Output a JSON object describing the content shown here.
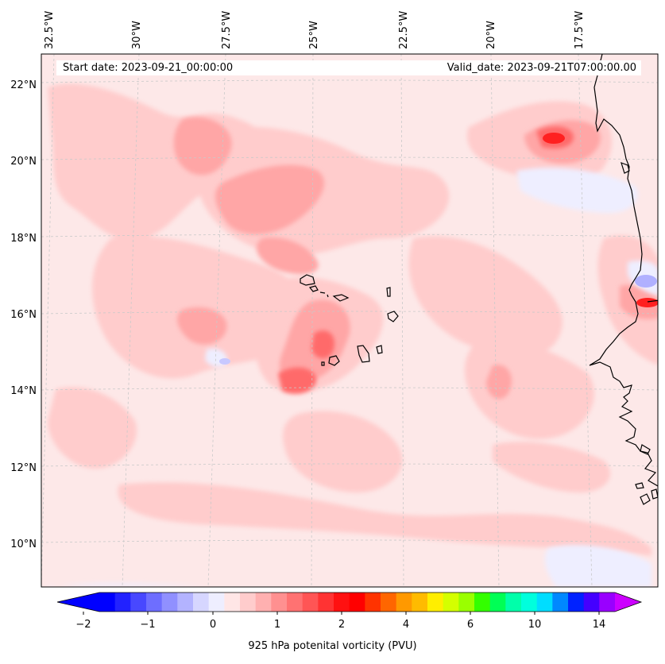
{
  "map": {
    "start_date": "Start date: 2023-09-21_00:00:00",
    "valid_date": "Valid_date: 2023-09-21T07:00:00.00",
    "lon_labels": [
      "32.5°W",
      "30°W",
      "27.5°W",
      "25°W",
      "22.5°W",
      "20°W",
      "17.5°W"
    ],
    "lat_labels": [
      "22°N",
      "20°N",
      "18°N",
      "16°N",
      "14°N",
      "12°N",
      "10°N"
    ],
    "region": "Cabo Verde / West African coast",
    "background_color": "#fde8e8"
  },
  "colorbar": {
    "label": "925 hPa potenital vorticity (PVU)",
    "tick_labels": [
      "−2",
      "−1",
      "0",
      "1",
      "2",
      "4",
      "6",
      "10",
      "14"
    ],
    "colors": [
      "#0000ff",
      "#2222ff",
      "#4848ff",
      "#6e6eff",
      "#9090ff",
      "#b3b3ff",
      "#d6d6ff",
      "#eeeeff",
      "#ffe6e6",
      "#ffcccc",
      "#ffb0b0",
      "#ff9090",
      "#ff7272",
      "#ff5555",
      "#ff3333",
      "#ff1111",
      "#ff0000",
      "#ff3300",
      "#ff6600",
      "#ff9900",
      "#ffbb00",
      "#ffee00",
      "#d4ff00",
      "#9aff00",
      "#33ff00",
      "#00ff55",
      "#00ffaa",
      "#00ffdd",
      "#00ddff",
      "#0088ff",
      "#0022ff",
      "#4400ff",
      "#9900ff"
    ],
    "extend_min_color": "#0000ff",
    "extend_max_color": "#cc00ff"
  }
}
